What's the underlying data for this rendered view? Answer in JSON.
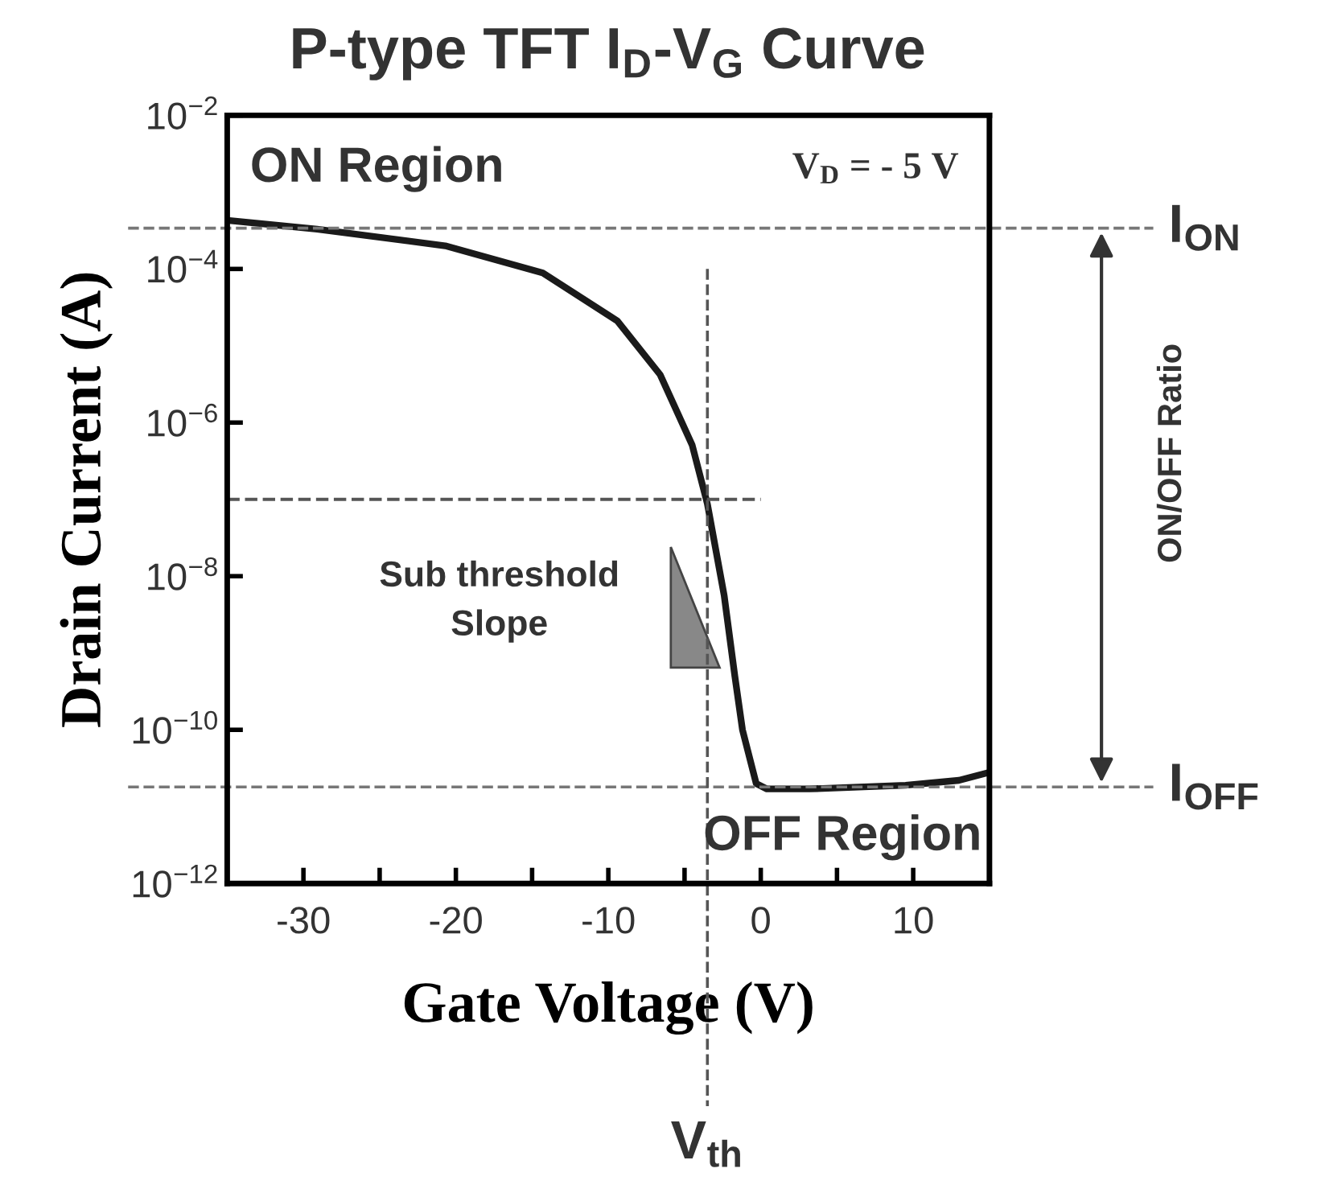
{
  "chart_data": {
    "type": "line",
    "title": "P-type TFT I$_{D}$-V$_{G}$ Curve",
    "xlabel": "Gate Voltage (V)",
    "ylabel": "Drain Current (A)",
    "x": [
      -35,
      -29.1,
      -20.7,
      -14.3,
      -9.4,
      -6.6,
      -4.5,
      -3.5,
      -2.4,
      -1.7,
      -1.2,
      -0.3,
      0.4,
      3.2,
      9.5,
      13.0,
      15
    ],
    "series": [
      {
        "color": "#1a1a1a",
        "values": [
          0.00043,
          0.00033,
          0.0002,
          8.9e-05,
          2.1e-05,
          4.2e-06,
          5.1e-07,
          8.7e-08,
          5.6e-09,
          5e-10,
          1e-10,
          2e-11,
          1.7e-11,
          1.7e-11,
          1.9e-11,
          2.2e-11,
          2.8e-11
        ]
      }
    ],
    "log": "y",
    "xlim": [
      -35,
      15
    ],
    "ylim": [
      1e-12,
      0.01
    ],
    "xticks": [
      -30,
      {
        "value": -25,
        "label": null
      },
      -20,
      {
        "value": -15,
        "label": null
      },
      -10,
      {
        "value": -5,
        "label": null
      },
      0,
      {
        "value": 5,
        "label": null
      },
      10
    ],
    "yticks": [
      {
        "value": 1e-12,
        "label": "10$^{−12}$"
      },
      {
        "value": 1e-10,
        "label": "10$^{−10}$"
      },
      {
        "value": 1e-08,
        "label": "10$^{−8}$"
      },
      {
        "value": 1e-06,
        "label": "10$^{−6}$"
      },
      {
        "value": 0.0001,
        "label": "10$^{−4}$"
      },
      {
        "value": 0.01,
        "label": "10$^{−2}$"
      }
    ],
    "ref_lines": [
      {
        "axis": "y",
        "value": 0.00034,
        "label": "I$_{ON}$",
        "color": "#777777",
        "line_style": "dashed"
      },
      {
        "axis": "y",
        "value": 1.8e-11,
        "label": "I$_{OFF}$",
        "color": "#777777",
        "line_style": "dashed"
      },
      {
        "axis": "y",
        "value": 1e-07,
        "color": "#555555",
        "line_style": "dashed"
      },
      {
        "axis": "x",
        "value": -3.5,
        "label": "V$_{th}$",
        "color": "#555555",
        "line_style": "dashed"
      }
    ],
    "annotations": [
      "ON Region",
      "V$_{D}$ = - 5 V",
      "Sub threshold\nSlope",
      "OFF Region",
      "ON/OFF Ratio"
    ],
    "grid": false,
    "legend": false,
    "marker": "none",
    "line_style": "solid"
  }
}
